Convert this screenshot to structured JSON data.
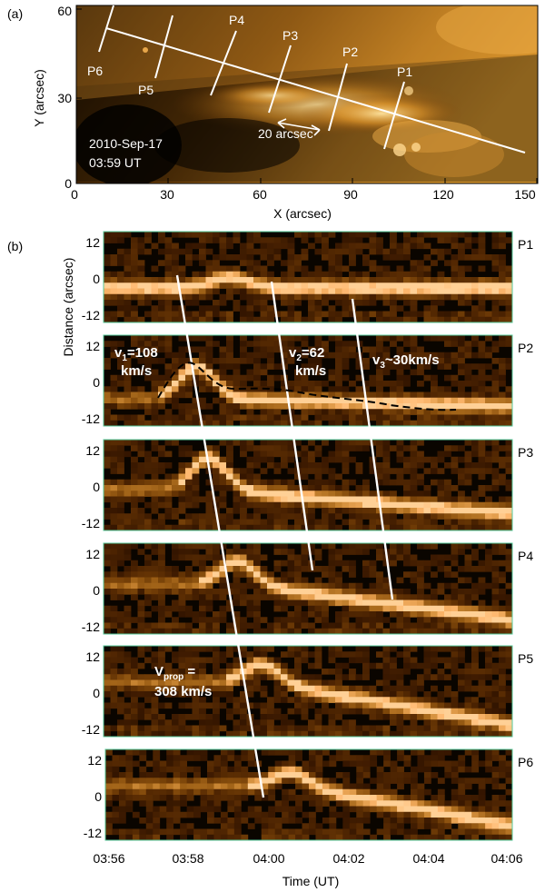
{
  "panel_a": {
    "label": "(a)",
    "xlabel": "X (arcsec)",
    "ylabel": "Y (arcsec)",
    "xticks": [
      "0",
      "30",
      "60",
      "90",
      "120",
      "150"
    ],
    "yticks": [
      "0",
      "30",
      "60"
    ],
    "date": "2010-Sep-17",
    "time": "03:59 UT",
    "scale_label": "20 arcsec",
    "slice_labels": [
      "P6",
      "P5",
      "P4",
      "P3",
      "P2",
      "P1"
    ]
  },
  "panel_b": {
    "label": "(b)",
    "ylabel": "Distance (arcsec)",
    "xlabel": "Time (UT)",
    "xticks": [
      "03:56",
      "03:58",
      "04:00",
      "04:02",
      "04:04",
      "04:06"
    ],
    "yticks": [
      "12",
      "0",
      "-12"
    ],
    "panels": [
      "P1",
      "P2",
      "P3",
      "P4",
      "P5",
      "P6"
    ],
    "annotations": {
      "v1_a": "v",
      "v1_b": "1",
      "v1_c": "=108",
      "v1_d": "km/s",
      "v2_a": "v",
      "v2_b": "2",
      "v2_c": "=62",
      "v2_d": "km/s",
      "v3": "v",
      "v3_sub": "3",
      "v3_rest": "~30km/s",
      "vprop_a": "V",
      "vprop_b": "prop",
      "vprop_c": " =",
      "vprop_d": "308 km/s"
    }
  },
  "colors": {
    "background": "#000000",
    "emission": "#f0a030",
    "frame": "#55c89a",
    "overlay": "#ffffff"
  }
}
